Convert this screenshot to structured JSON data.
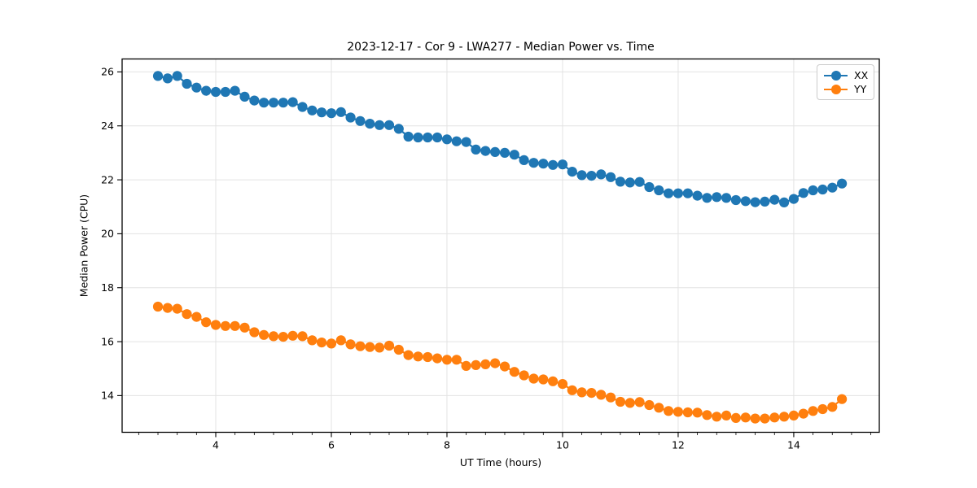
{
  "figure": {
    "title": "2023-12-17 - Cor 9 - LWA277 - Median Power vs. Time",
    "xlabel": "UT Time (hours)",
    "ylabel": "Median Power (CPU)"
  },
  "legend": {
    "position": "upper right",
    "entries": [
      {
        "label": "XX",
        "color": "#1f77b4"
      },
      {
        "label": "YY",
        "color": "#ff7f0e"
      }
    ]
  },
  "colors": {
    "xx": "#1f77b4",
    "yy": "#ff7f0e",
    "grid": "#e3e3e3",
    "spine": "#000000",
    "text": "#000000"
  },
  "chart_data": {
    "type": "line",
    "title": "2023-12-17 - Cor 9 - LWA277 - Median Power vs. Time",
    "xlabel": "UT Time (hours)",
    "ylabel": "Median Power (CPU)",
    "xlim": [
      2.38,
      15.48
    ],
    "ylim": [
      12.64,
      26.48
    ],
    "xticks": [
      4,
      6,
      8,
      10,
      12,
      14
    ],
    "yticks": [
      14,
      16,
      18,
      20,
      22,
      24,
      26
    ],
    "minor_xtick_interval": 0.3333,
    "grid": true,
    "legend_position": "upper right",
    "marker": "circle",
    "x": [
      3.0,
      3.167,
      3.333,
      3.5,
      3.667,
      3.833,
      4.0,
      4.167,
      4.333,
      4.5,
      4.667,
      4.833,
      5.0,
      5.167,
      5.333,
      5.5,
      5.667,
      5.833,
      6.0,
      6.167,
      6.333,
      6.5,
      6.667,
      6.833,
      7.0,
      7.167,
      7.333,
      7.5,
      7.667,
      7.833,
      8.0,
      8.167,
      8.333,
      8.5,
      8.667,
      8.833,
      9.0,
      9.167,
      9.333,
      9.5,
      9.667,
      9.833,
      10.0,
      10.167,
      10.333,
      10.5,
      10.667,
      10.833,
      11.0,
      11.167,
      11.333,
      11.5,
      11.667,
      11.833,
      12.0,
      12.167,
      12.333,
      12.5,
      12.667,
      12.833,
      13.0,
      13.167,
      13.333,
      13.5,
      13.667,
      13.833,
      14.0,
      14.167,
      14.333,
      14.5,
      14.667,
      14.833
    ],
    "series": [
      {
        "name": "XX",
        "color": "#1f77b4",
        "values": [
          25.85,
          25.76,
          25.85,
          25.56,
          25.42,
          25.3,
          25.26,
          25.26,
          25.3,
          25.08,
          24.94,
          24.86,
          24.86,
          24.86,
          24.88,
          24.7,
          24.57,
          24.5,
          24.47,
          24.51,
          24.31,
          24.18,
          24.08,
          24.03,
          24.03,
          23.89,
          23.6,
          23.57,
          23.57,
          23.57,
          23.5,
          23.43,
          23.4,
          23.12,
          23.07,
          23.03,
          23.0,
          22.93,
          22.73,
          22.63,
          22.6,
          22.55,
          22.57,
          22.3,
          22.17,
          22.15,
          22.2,
          22.1,
          21.93,
          21.9,
          21.92,
          21.73,
          21.61,
          21.5,
          21.5,
          21.5,
          21.41,
          21.33,
          21.36,
          21.33,
          21.25,
          21.21,
          21.17,
          21.19,
          21.26,
          21.16,
          21.29,
          21.51,
          21.61,
          21.64,
          21.71,
          21.86
        ]
      },
      {
        "name": "YY",
        "color": "#ff7f0e",
        "values": [
          17.3,
          17.25,
          17.22,
          17.02,
          16.92,
          16.72,
          16.62,
          16.58,
          16.58,
          16.52,
          16.35,
          16.25,
          16.2,
          16.18,
          16.22,
          16.2,
          16.05,
          15.97,
          15.93,
          16.05,
          15.9,
          15.83,
          15.8,
          15.78,
          15.85,
          15.7,
          15.5,
          15.45,
          15.43,
          15.38,
          15.33,
          15.33,
          15.1,
          15.13,
          15.16,
          15.2,
          15.08,
          14.88,
          14.75,
          14.63,
          14.6,
          14.53,
          14.43,
          14.2,
          14.12,
          14.1,
          14.03,
          13.93,
          13.77,
          13.73,
          13.76,
          13.65,
          13.55,
          13.43,
          13.4,
          13.38,
          13.37,
          13.28,
          13.22,
          13.26,
          13.17,
          13.19,
          13.15,
          13.15,
          13.19,
          13.22,
          13.26,
          13.33,
          13.43,
          13.5,
          13.58,
          13.87
        ]
      }
    ]
  }
}
